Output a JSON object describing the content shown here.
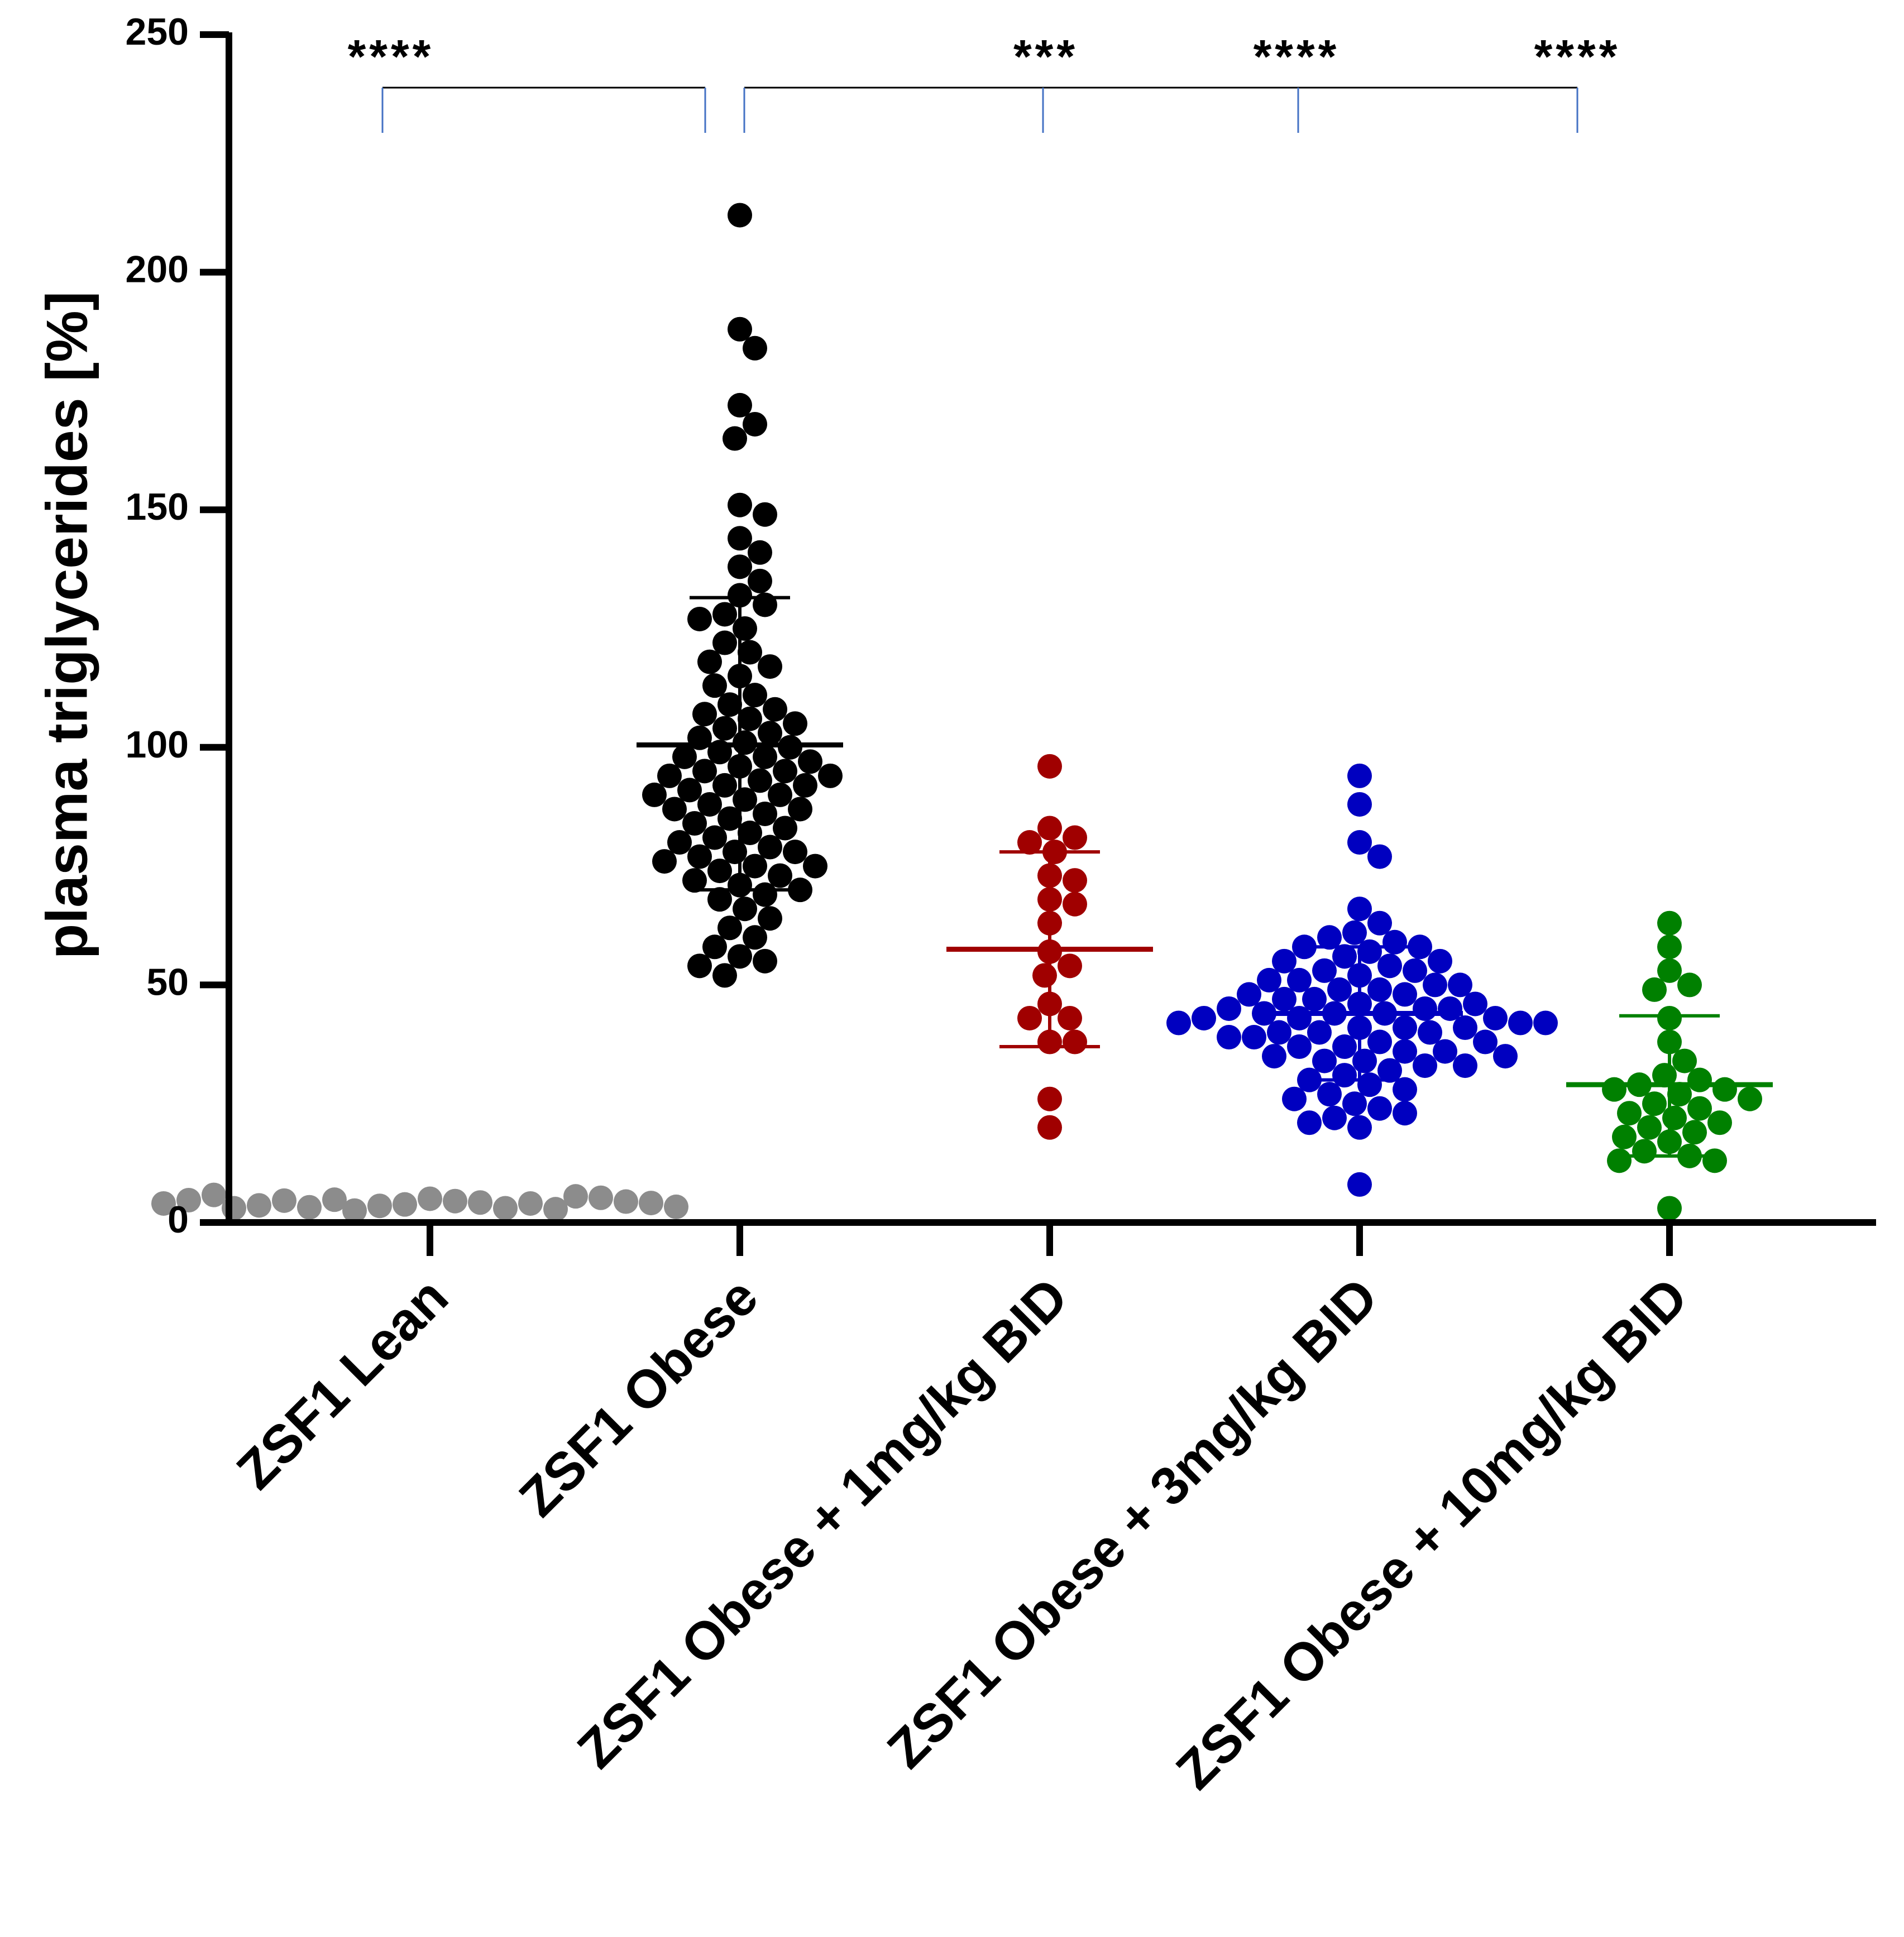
{
  "chart_data": {
    "type": "scatter",
    "subtype": "dot-plot with mean and SD",
    "title": "",
    "xlabel": "",
    "ylabel": "plasma triglycerides [%]",
    "ylim": [
      0,
      250
    ],
    "yticks": [
      0,
      50,
      100,
      150,
      200,
      250
    ],
    "categories": [
      "ZSF1 Lean",
      "ZSF1 Obese",
      "ZSF1 Obese + 1mg/kg BID",
      "ZSF1 Obese + 3mg/kg BID",
      "ZSF1 Obese + 10mg/kg BID"
    ],
    "series": [
      {
        "name": "ZSF1 Lean",
        "color": "#8c8c8c",
        "mean": 4,
        "sd_low": 4,
        "sd_high": 4,
        "show_mean": false,
        "values": [
          5.0,
          4.5,
          3.8,
          4.2,
          3.5,
          3.0,
          2.5,
          4.8,
          4.0,
          3.2,
          2.8,
          4.6,
          5.5,
          5.2,
          3.6,
          4.4,
          3.0,
          4.1,
          5.8,
          4.7,
          3.3,
          4.0
        ]
      },
      {
        "name": "ZSF1 Obese",
        "color": "#000000",
        "mean": 100.5,
        "sd_low": 70,
        "sd_high": 131.5,
        "show_mean": true,
        "values": [
          212,
          188,
          184,
          172,
          168,
          165,
          151,
          149,
          144,
          141,
          138,
          135,
          132,
          130,
          128,
          127,
          125,
          122,
          120,
          118,
          117,
          115,
          113,
          111,
          109,
          108,
          107,
          106,
          105,
          104,
          103,
          102,
          101,
          100,
          99,
          98,
          98,
          97,
          96,
          95,
          95,
          94,
          94,
          93,
          92,
          92,
          91,
          90,
          90,
          89,
          88,
          87,
          87,
          86,
          85,
          84,
          83,
          82,
          81,
          80,
          79,
          78,
          78,
          77,
          76,
          75,
          75,
          74,
          73,
          72,
          71,
          70,
          69,
          68,
          66,
          64,
          62,
          60,
          58,
          56,
          55,
          54,
          52
        ]
      },
      {
        "name": "ZSF1 Obese + 1mg/kg BID",
        "color": "#a00000",
        "mean": 57.5,
        "sd_low": 37,
        "sd_high": 78,
        "show_mean": true,
        "values": [
          96,
          83,
          81,
          80,
          78,
          73,
          72,
          68,
          67,
          63,
          57,
          54,
          52,
          46,
          43,
          43,
          38,
          38,
          26,
          20
        ]
      },
      {
        "name": "ZSF1 Obese + 3mg/kg BID",
        "color": "#0000c0",
        "mean": 44,
        "sd_low": 30,
        "sd_high": 58,
        "show_mean": true,
        "values": [
          94,
          88,
          80,
          77,
          66,
          63,
          61,
          60,
          59,
          58,
          58,
          57,
          56,
          55,
          55,
          54,
          53,
          53,
          52,
          51,
          51,
          50,
          50,
          49,
          49,
          48,
          48,
          47,
          47,
          46,
          46,
          45,
          45,
          45,
          44,
          44,
          44,
          43,
          43,
          43,
          42,
          42,
          42,
          41,
          41,
          41,
          40,
          40,
          40,
          39,
          39,
          38,
          38,
          37,
          37,
          36,
          36,
          35,
          35,
          34,
          34,
          33,
          33,
          32,
          31,
          30,
          29,
          28,
          27,
          26,
          25,
          24,
          23,
          22,
          21,
          20,
          8
        ]
      },
      {
        "name": "ZSF1 Obese + 10mg/kg BID",
        "color": "#008000",
        "mean": 29,
        "sd_low": 14,
        "sd_high": 43.5,
        "show_mean": true,
        "values": [
          63,
          58,
          53,
          50,
          49,
          43,
          38,
          34,
          31,
          30,
          29,
          28,
          28,
          27,
          26,
          25,
          24,
          23,
          22,
          21,
          20,
          19,
          18,
          17,
          15,
          14,
          13,
          13,
          3
        ]
      }
    ],
    "significance": [
      {
        "from": "ZSF1 Lean",
        "to": "ZSF1 Obese",
        "label": "****"
      },
      {
        "from": "ZSF1 Obese",
        "to": "ZSF1 Obese + 1mg/kg BID",
        "label": "***"
      },
      {
        "from": "ZSF1 Obese",
        "to": "ZSF1 Obese + 3mg/kg BID",
        "label": "****"
      },
      {
        "from": "ZSF1 Obese",
        "to": "ZSF1 Obese + 10mg/kg BID",
        "label": "****"
      }
    ]
  }
}
